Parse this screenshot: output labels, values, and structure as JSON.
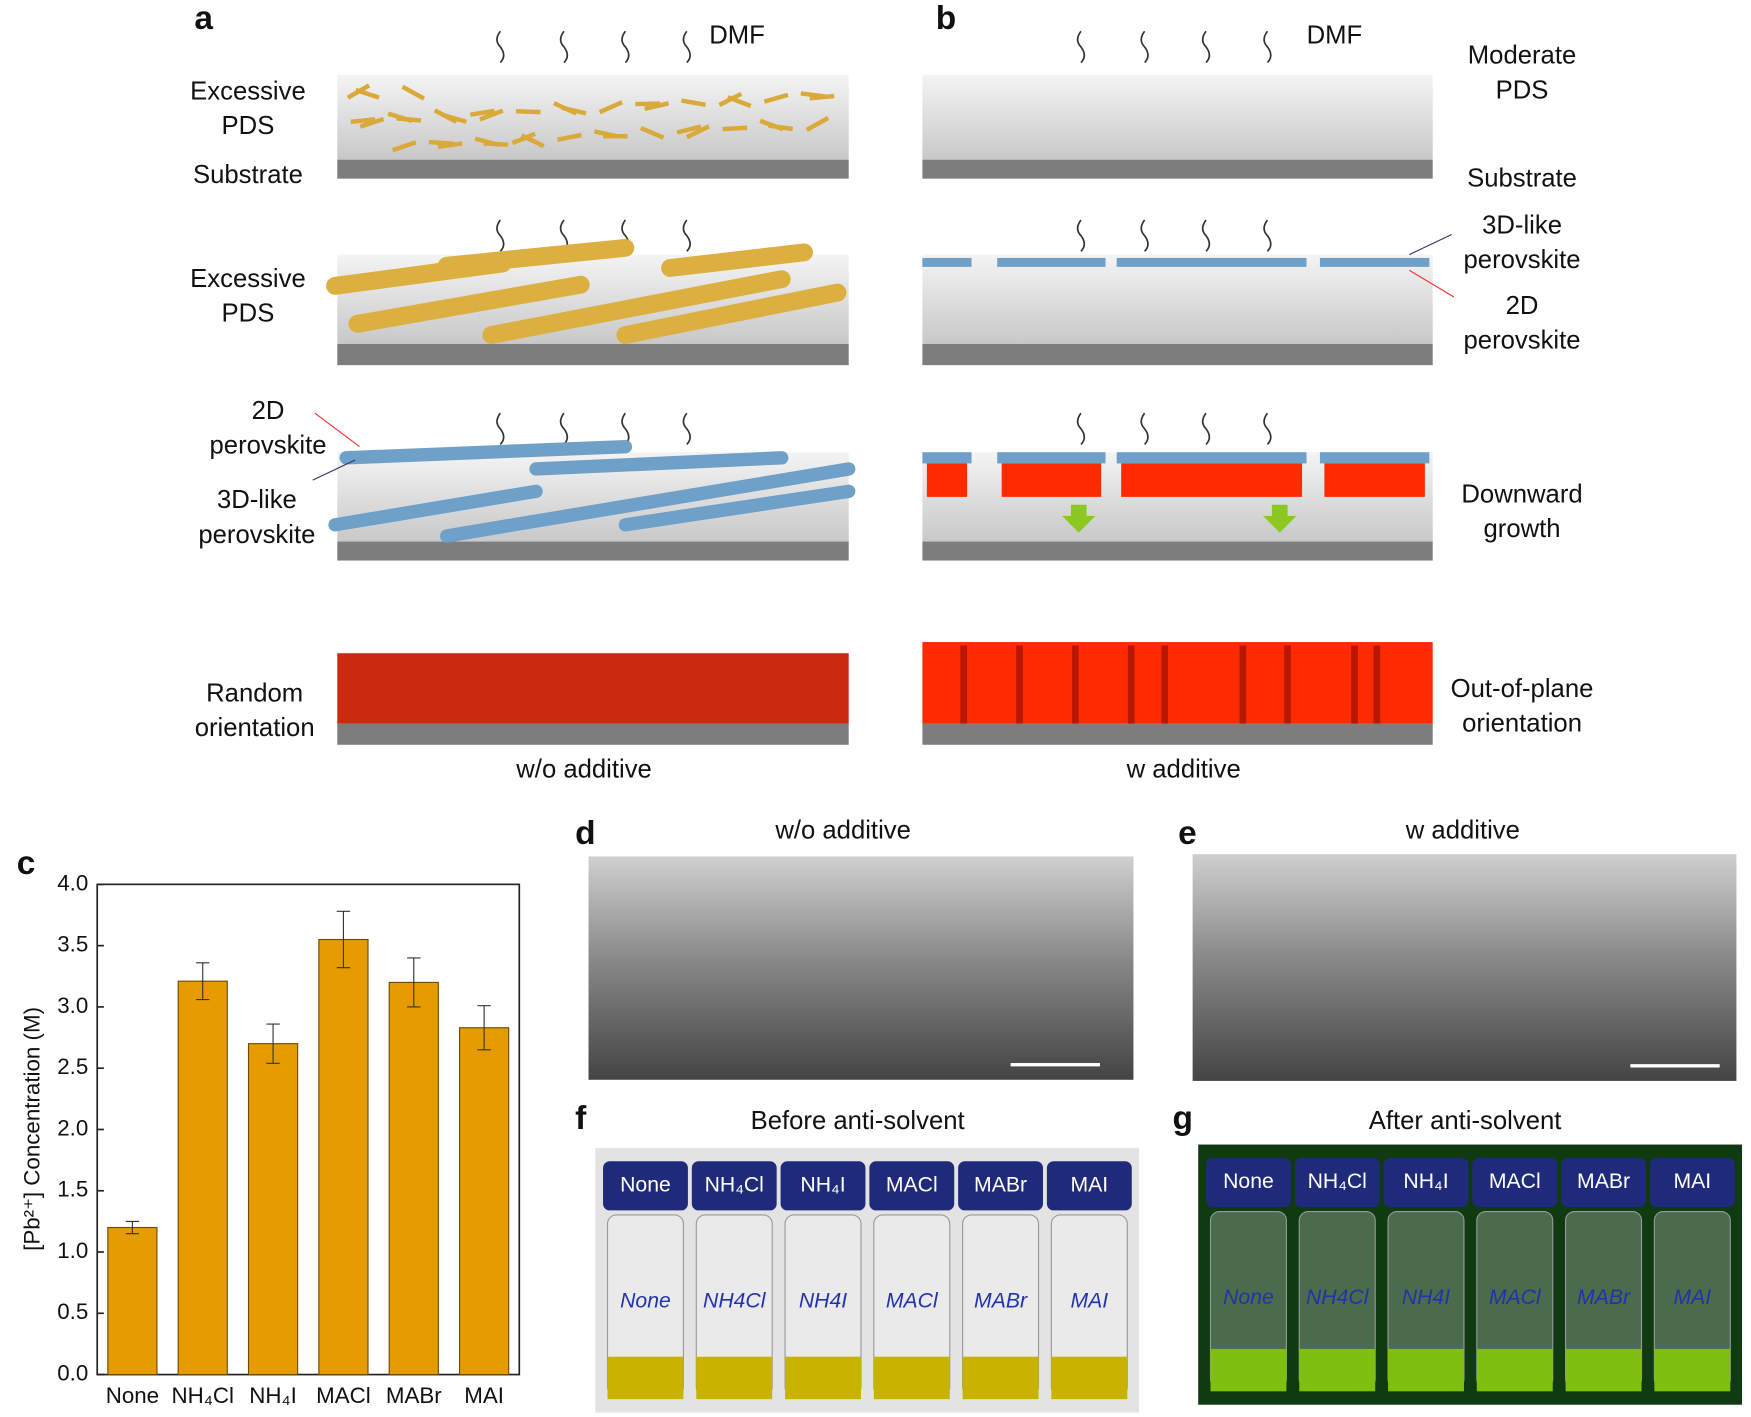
{
  "panel_labels": [
    "a",
    "b",
    "c",
    "d",
    "e",
    "f",
    "g"
  ],
  "scheme": {
    "a": {
      "dmf": "DMF",
      "row1": [
        "Excessive",
        "PDS"
      ],
      "substrate": "Substrate",
      "row2": [
        "Excessive",
        "PDS"
      ],
      "row3_2d": [
        "2D",
        "perovskite"
      ],
      "row3_3d": [
        "3D-like",
        "perovskite"
      ],
      "row4": [
        "Random",
        "orientation"
      ],
      "caption": "w/o additive"
    },
    "b": {
      "dmf": "DMF",
      "row1": [
        "Moderate",
        "PDS"
      ],
      "substrate": "Substrate",
      "row2_3d": [
        "3D-like",
        "perovskite"
      ],
      "row2_2d": [
        "2D",
        "perovskite"
      ],
      "row3": [
        "Downward",
        "growth"
      ],
      "row4": [
        "Out-of-plane",
        "orientation"
      ],
      "caption": "w additive"
    }
  },
  "sem": {
    "d_title": "w/o additive",
    "e_title": "w additive"
  },
  "vials": {
    "f_title": "Before anti-solvent",
    "g_title": "After anti-solvent",
    "caps": [
      "None",
      "NH₄Cl",
      "NH₄I",
      "MACl",
      "MABr",
      "MAI"
    ],
    "handwritten": [
      "None",
      "NH4Cl",
      "NH4I",
      "MACl",
      "MABr",
      "MAI"
    ]
  },
  "chart_data": {
    "type": "bar",
    "y_label": "[Pb²⁺] Concentration (M)",
    "categories": [
      "None",
      "NH₄Cl",
      "NH₄I",
      "MACl",
      "MABr",
      "MAI"
    ],
    "values": [
      1.2,
      3.21,
      2.7,
      3.55,
      3.2,
      2.83
    ],
    "errors": [
      0.05,
      0.15,
      0.16,
      0.23,
      0.2,
      0.18
    ],
    "color": "#e69c00",
    "ylim": [
      0,
      4
    ],
    "yticks": [
      {
        "value": 0,
        "label": "0.0"
      },
      {
        "value": 0.5,
        "label": "0.5"
      },
      {
        "value": 1,
        "label": "1.0"
      },
      {
        "value": 1.5,
        "label": "1.5"
      },
      {
        "value": 2,
        "label": "2.0"
      },
      {
        "value": 2.5,
        "label": "2.5"
      },
      {
        "value": 3,
        "label": "3.0"
      },
      {
        "value": 3.5,
        "label": "3.5"
      },
      {
        "value": 4,
        "label": "4.0"
      }
    ]
  }
}
